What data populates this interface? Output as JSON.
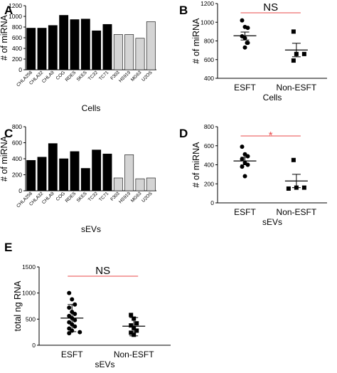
{
  "sig_color": "#e84a4a",
  "bar_colors": {
    "esft": "#000000",
    "non_esft": "#d4d4d4"
  },
  "chart_data": [
    {
      "id": "A",
      "type": "bar",
      "panel_label": "A",
      "xlabel": "Cells",
      "ylabel": "# of miRNA",
      "ylim": [
        0,
        1200
      ],
      "yticks": [
        0,
        200,
        400,
        600,
        800,
        1000,
        1200
      ],
      "categories": [
        "CHLA258",
        "CHLA32",
        "CHLA9",
        "COG",
        "RDES",
        "SKES",
        "TC32",
        "TC71",
        "F303",
        "HS919",
        "MG63",
        "U2OS"
      ],
      "values": [
        780,
        780,
        830,
        1020,
        940,
        950,
        730,
        850,
        660,
        660,
        590,
        900
      ],
      "groups": [
        "esft",
        "esft",
        "esft",
        "esft",
        "esft",
        "esft",
        "esft",
        "esft",
        "non_esft",
        "non_esft",
        "non_esft",
        "non_esft"
      ]
    },
    {
      "id": "B",
      "type": "scatter",
      "panel_label": "B",
      "xlabel": "Cells",
      "ylabel": "# of miRNA",
      "ylim": [
        400,
        1200
      ],
      "yticks": [
        400,
        600,
        800,
        1000,
        1200
      ],
      "categories": [
        "ESFT",
        "Non-ESFT"
      ],
      "series": [
        {
          "name": "ESFT",
          "marker": "circle",
          "values": [
            1020,
            950,
            940,
            850,
            830,
            780,
            780,
            730
          ],
          "mean": 855,
          "sem_low": 810,
          "sem_high": 895
        },
        {
          "name": "Non-ESFT",
          "marker": "square",
          "values": [
            900,
            660,
            660,
            590
          ],
          "mean": 703,
          "sem_low": 630,
          "sem_high": 775
        }
      ],
      "annotation": "NS"
    },
    {
      "id": "C",
      "type": "bar",
      "panel_label": "C",
      "xlabel": "sEVs",
      "ylabel": "# of miRNA",
      "ylim": [
        0,
        800
      ],
      "yticks": [
        0,
        200,
        400,
        600,
        800
      ],
      "categories": [
        "CHLA258",
        "CHLA32",
        "CHLA9",
        "COG",
        "RDES",
        "SKES",
        "TC32",
        "TC71",
        "F303",
        "HS919",
        "MG63",
        "U2OS"
      ],
      "values": [
        380,
        420,
        590,
        400,
        490,
        280,
        510,
        460,
        160,
        450,
        150,
        160
      ],
      "groups": [
        "esft",
        "esft",
        "esft",
        "esft",
        "esft",
        "esft",
        "esft",
        "esft",
        "non_esft",
        "non_esft",
        "non_esft",
        "non_esft"
      ]
    },
    {
      "id": "D",
      "type": "scatter",
      "panel_label": "D",
      "xlabel": "sEVs",
      "ylabel": "# of miRNA",
      "ylim": [
        0,
        800
      ],
      "yticks": [
        0,
        200,
        400,
        600,
        800
      ],
      "categories": [
        "ESFT",
        "Non-ESFT"
      ],
      "series": [
        {
          "name": "ESFT",
          "marker": "circle",
          "values": [
            590,
            510,
            490,
            460,
            420,
            400,
            380,
            280
          ],
          "mean": 440,
          "sem_low": 400,
          "sem_high": 480
        },
        {
          "name": "Non-ESFT",
          "marker": "square",
          "values": [
            450,
            160,
            160,
            150
          ],
          "mean": 230,
          "sem_low": 160,
          "sem_high": 300
        }
      ],
      "annotation": "*"
    },
    {
      "id": "E",
      "type": "scatter",
      "panel_label": "E",
      "xlabel": "sEVs",
      "ylabel": "total ng RNA",
      "ylim": [
        0,
        1500
      ],
      "yticks": [
        0,
        500,
        1000,
        1500
      ],
      "categories": [
        "ESFT",
        "Non-ESFT"
      ],
      "series": [
        {
          "name": "ESFT",
          "marker": "circle",
          "values": [
            1000,
            880,
            780,
            720,
            640,
            600,
            560,
            520,
            480,
            440,
            400,
            360,
            320,
            280,
            250,
            230
          ],
          "mean": 520,
          "sem_low": 260,
          "sem_high": 780
        },
        {
          "name": "Non-ESFT",
          "marker": "square",
          "values": [
            580,
            510,
            420,
            380,
            330,
            280,
            240,
            200
          ],
          "mean": 365,
          "sem_low": 180,
          "sem_high": 530
        }
      ],
      "annotation": "NS"
    }
  ]
}
